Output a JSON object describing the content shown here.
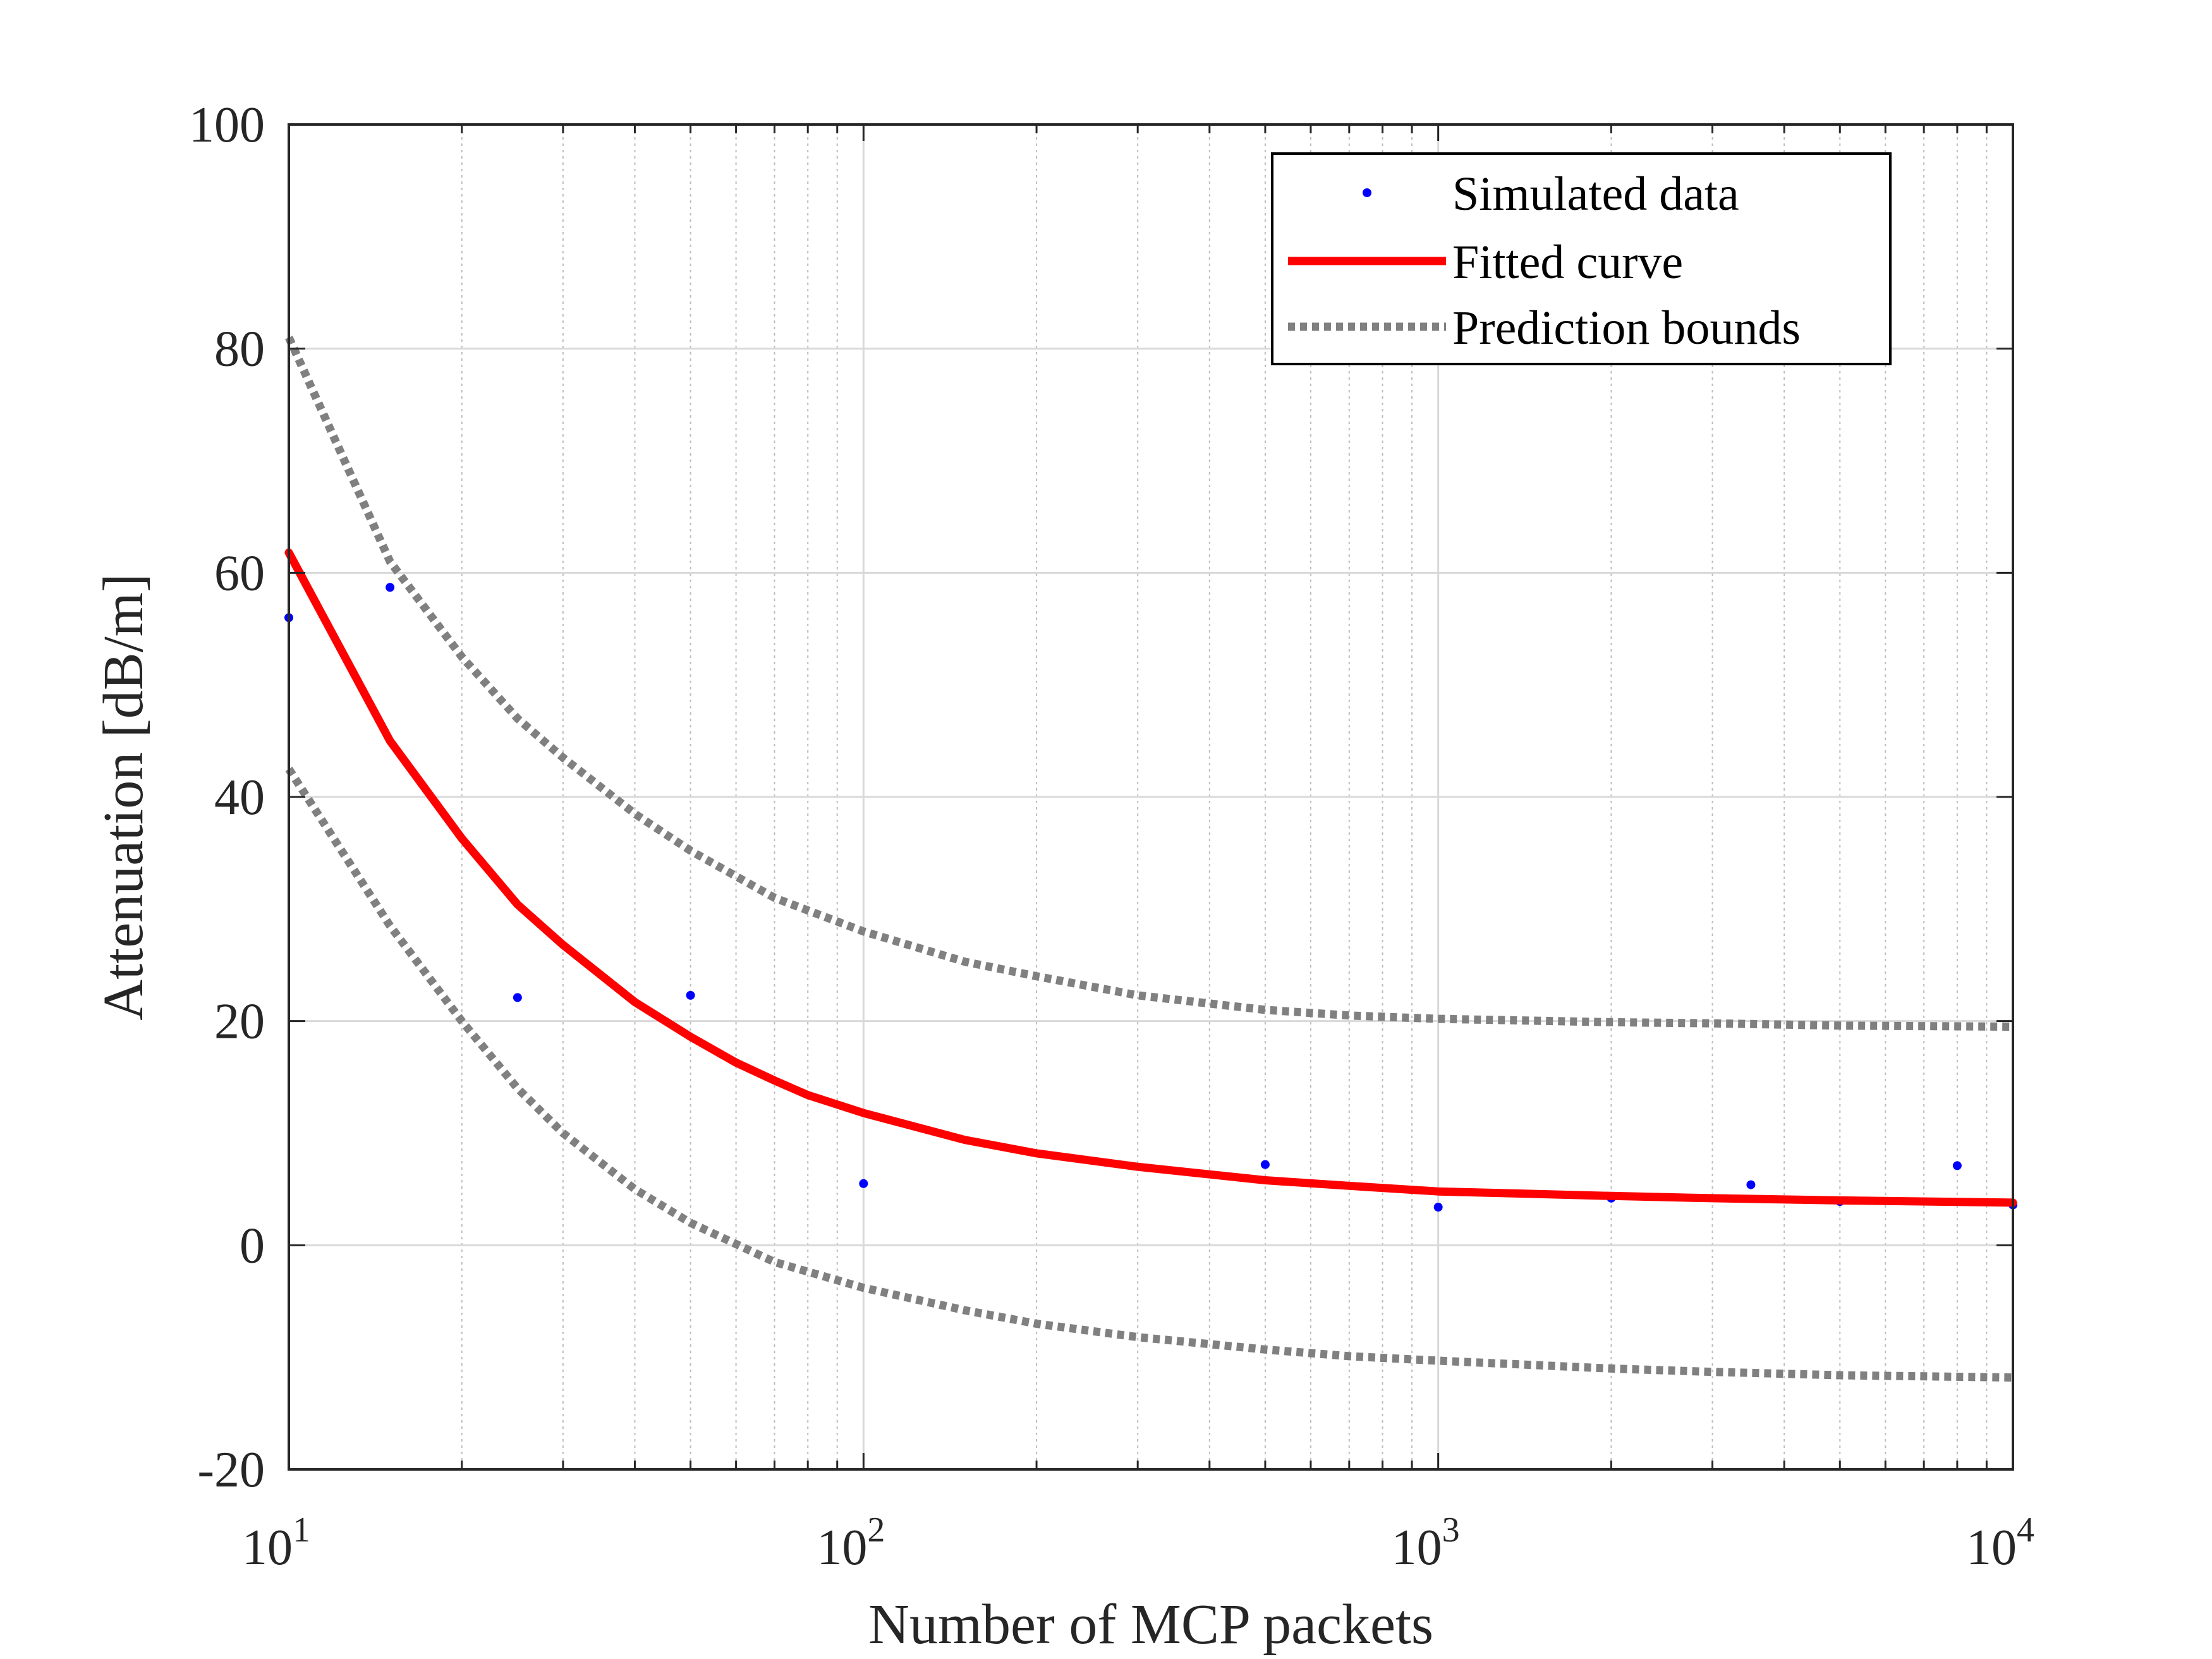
{
  "chart_data": {
    "type": "scatter",
    "title": "",
    "xlabel": "Number of MCP packets",
    "ylabel": "Attenuation [dB/m]",
    "xscale": "log",
    "xlim": [
      10,
      10000
    ],
    "ylim": [
      -20,
      100
    ],
    "grid": true,
    "legend_position": "top-right",
    "x_ticks": [
      {
        "base": "10",
        "exp": "1"
      },
      {
        "base": "10",
        "exp": "2"
      },
      {
        "base": "10",
        "exp": "3"
      },
      {
        "base": "10",
        "exp": "4"
      }
    ],
    "y_ticks": [
      "-20",
      "0",
      "20",
      "40",
      "60",
      "80",
      "100"
    ],
    "series": [
      {
        "name": "Simulated data",
        "style": "points",
        "color": "#0000ff",
        "x": [
          10,
          15,
          25,
          50,
          100,
          500,
          1000,
          2000,
          3500,
          5000,
          8000,
          10000
        ],
        "y": [
          56,
          58.7,
          22.1,
          22.3,
          5.5,
          7.2,
          3.4,
          4.2,
          5.4,
          3.9,
          7.1,
          3.6
        ]
      },
      {
        "name": "Fitted curve",
        "style": "solid",
        "color": "#ff0000",
        "x": [
          10,
          15,
          20,
          25,
          30,
          40,
          50,
          60,
          70,
          80,
          100,
          150,
          200,
          300,
          500,
          700,
          1000,
          2000,
          3000,
          5000,
          10000
        ],
        "y": [
          61.8,
          45.0,
          36.3,
          30.4,
          26.8,
          21.7,
          18.6,
          16.3,
          14.7,
          13.4,
          11.8,
          9.4,
          8.2,
          7.0,
          5.8,
          5.3,
          4.8,
          4.4,
          4.2,
          4.0,
          3.8
        ]
      },
      {
        "name": "Prediction bounds",
        "style": "dotted",
        "color": "#808080",
        "x": [
          10,
          15,
          20,
          25,
          30,
          40,
          50,
          70,
          100,
          150,
          200,
          300,
          500,
          700,
          1000,
          2000,
          3000,
          5000,
          10000
        ],
        "y": [
          81,
          61,
          52.5,
          47,
          43.5,
          38.5,
          35.2,
          31,
          28,
          25.3,
          24,
          22.3,
          21,
          20.5,
          20.2,
          19.9,
          19.8,
          19.6,
          19.5
        ]
      },
      {
        "name": "Prediction bounds (lower)",
        "style": "dotted",
        "color": "#808080",
        "in_legend": false,
        "x": [
          10,
          15,
          20,
          25,
          30,
          40,
          50,
          70,
          100,
          150,
          200,
          300,
          500,
          700,
          1000,
          2000,
          3000,
          5000,
          10000
        ],
        "y": [
          42.5,
          28.5,
          20,
          14,
          10,
          5,
          2,
          -1.5,
          -3.8,
          -5.8,
          -7,
          -8.2,
          -9.3,
          -9.9,
          -10.3,
          -11,
          -11.3,
          -11.6,
          -11.8
        ]
      }
    ]
  }
}
